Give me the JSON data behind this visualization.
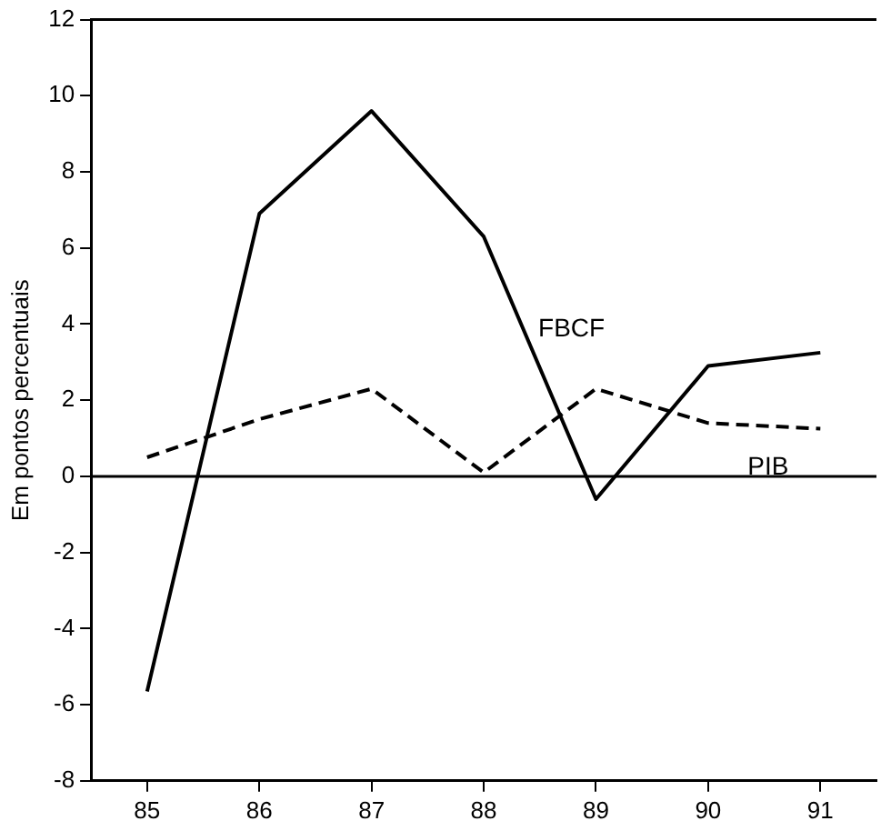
{
  "chart_data": {
    "type": "line",
    "ylabel": "Em pontos percentuais",
    "x": [
      85,
      86,
      87,
      88,
      89,
      90,
      91
    ],
    "xlim": [
      84.5,
      91.5
    ],
    "xticks": [
      85,
      86,
      87,
      88,
      89,
      90,
      91
    ],
    "ylim": [
      -8,
      12
    ],
    "yticks": [
      -8,
      -6,
      -4,
      -2,
      0,
      2,
      4,
      6,
      8,
      10,
      12
    ],
    "grid": false,
    "legend": false,
    "marker": "none",
    "series": [
      {
        "name": "FBCF",
        "color": "#000000",
        "line_style": "solid",
        "values": [
          -5.65,
          6.9,
          9.6,
          6.3,
          -0.6,
          2.9,
          3.25
        ]
      },
      {
        "name": "PIB",
        "color": "#000000",
        "line_style": "dashed",
        "values": [
          0.5,
          1.5,
          2.3,
          0.1,
          2.3,
          1.4,
          1.25
        ]
      }
    ],
    "ref_lines": [
      {
        "axis": "y",
        "value": 0,
        "color": "#000000",
        "line_style": "solid"
      }
    ]
  }
}
